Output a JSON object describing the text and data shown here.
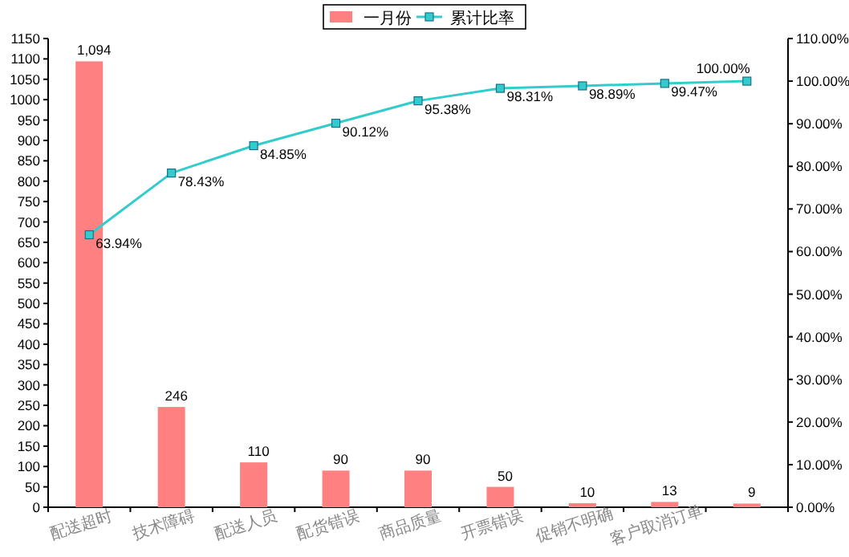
{
  "chart_data": {
    "type": "bar",
    "categories": [
      "配送超时",
      "技术障碍",
      "配送人员",
      "配货错误",
      "商品质量",
      "开票错误",
      "促销不明确",
      "客户取消订单",
      null
    ],
    "series": [
      {
        "name": "一月份",
        "color": "#ff8080",
        "values": [
          1094,
          246,
          110,
          90,
          90,
          50,
          10,
          13,
          9
        ],
        "value_labels": [
          "1,094",
          "246",
          "110",
          "90",
          "90",
          "50",
          "10",
          "13",
          "9"
        ]
      },
      {
        "name": "累计比率",
        "type": "line",
        "axis": "y2",
        "color": "#33cccc",
        "marker": "square",
        "values": [
          63.94,
          78.43,
          84.85,
          90.12,
          95.38,
          98.31,
          98.89,
          99.47,
          100.0
        ],
        "value_labels": [
          "63.94%",
          "78.43%",
          "84.85%",
          "90.12%",
          "95.38%",
          "98.31%",
          "98.89%",
          "99.47%",
          "100.00%"
        ]
      }
    ],
    "ylim": [
      0,
      1150
    ],
    "yticks": [
      0,
      50,
      100,
      150,
      200,
      250,
      300,
      350,
      400,
      450,
      500,
      550,
      600,
      650,
      700,
      750,
      800,
      850,
      900,
      950,
      1000,
      1050,
      1100,
      1150
    ],
    "y2lim": [
      0,
      110
    ],
    "y2ticks": [
      {
        "value": 0,
        "label": "0.00%"
      },
      {
        "value": 10,
        "label": "10.00%"
      },
      {
        "value": 20,
        "label": "20.00%"
      },
      {
        "value": 30,
        "label": "30.00%"
      },
      {
        "value": 40,
        "label": "40.00%"
      },
      {
        "value": 50,
        "label": "50.00%"
      },
      {
        "value": 60,
        "label": "60.00%"
      },
      {
        "value": 70,
        "label": "70.00%"
      },
      {
        "value": 80,
        "label": "80.00%"
      },
      {
        "value": 90,
        "label": "90.00%"
      },
      {
        "value": 100,
        "label": "100.00%"
      },
      {
        "value": 110,
        "label": "110.00%"
      }
    ],
    "grid": false,
    "legend": "top"
  }
}
